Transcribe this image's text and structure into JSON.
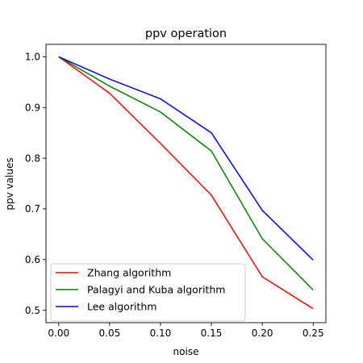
{
  "chart_data": {
    "type": "line",
    "title": "ppv operation",
    "xlabel": "noise",
    "ylabel": "ppv values",
    "x": [
      0.0,
      0.05,
      0.1,
      0.15,
      0.2,
      0.25
    ],
    "x_tick_labels": [
      "0.00",
      "0.05",
      "0.10",
      "0.15",
      "0.20",
      "0.25"
    ],
    "y_tick_values": [
      0.5,
      0.6,
      0.7,
      0.8,
      0.9,
      1.0
    ],
    "y_tick_labels": [
      "0.5",
      "0.6",
      "0.7",
      "0.8",
      "0.9",
      "1.0"
    ],
    "xlim": [
      -0.0125,
      0.2625
    ],
    "ylim": [
      0.4755,
      1.0245
    ],
    "grid": false,
    "legend_position": "lower-left",
    "series": [
      {
        "name": "Zhang algorithm",
        "color": "#ff0000",
        "values": [
          1.0,
          0.928,
          0.829,
          0.727,
          0.566,
          0.503
        ]
      },
      {
        "name": "Palagyi and Kuba algorithm",
        "color": "#008000",
        "values": [
          1.0,
          0.942,
          0.891,
          0.814,
          0.641,
          0.54
        ]
      },
      {
        "name": "Lee algorithm",
        "color": "#0000ff",
        "values": [
          1.0,
          0.956,
          0.917,
          0.85,
          0.697,
          0.599
        ]
      }
    ]
  }
}
